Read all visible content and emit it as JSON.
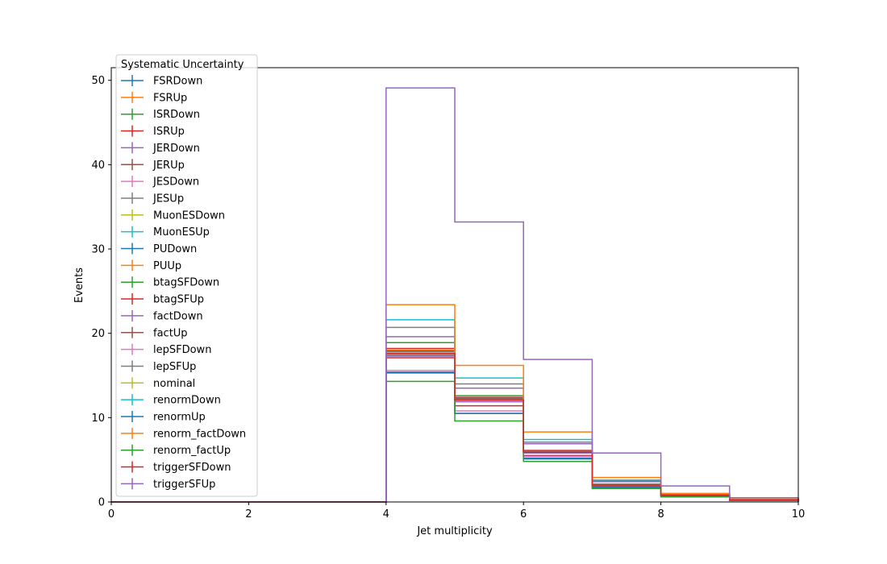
{
  "chart_data": {
    "type": "line",
    "style": "step-histogram",
    "xlabel": "Jet multiplicity",
    "ylabel": "Events",
    "xlim": [
      0,
      10
    ],
    "ylim": [
      0,
      51.5
    ],
    "xticks": [
      0,
      2,
      4,
      6,
      8,
      10
    ],
    "yticks": [
      0,
      10,
      20,
      30,
      40,
      50
    ],
    "bin_edges": [
      0,
      1,
      2,
      3,
      4,
      5,
      6,
      7,
      8,
      9,
      10
    ],
    "grid": false,
    "legend": {
      "title": "Systematic Uncertainty",
      "placement": "top-left"
    },
    "series": [
      {
        "name": "FSRDown",
        "color": "#1f77b4",
        "values": [
          0,
          0,
          0,
          0,
          15.4,
          10.5,
          5.1,
          1.7,
          0.7,
          0.2
        ]
      },
      {
        "name": "FSRUp",
        "color": "#ff7f0e",
        "values": [
          0,
          0,
          0,
          0,
          17.8,
          12.0,
          5.8,
          2.0,
          0.8,
          0.25
        ]
      },
      {
        "name": "ISRDown",
        "color": "#2ca02c",
        "values": [
          0,
          0,
          0,
          0,
          18.9,
          12.6,
          6.1,
          2.1,
          0.8,
          0.25
        ]
      },
      {
        "name": "ISRUp",
        "color": "#d62728",
        "values": [
          0,
          0,
          0,
          0,
          17.1,
          11.4,
          5.5,
          1.9,
          0.7,
          0.2
        ]
      },
      {
        "name": "JERDown",
        "color": "#9467bd",
        "values": [
          0,
          0,
          0,
          0,
          19.6,
          13.5,
          6.9,
          2.4,
          0.9,
          0.3
        ]
      },
      {
        "name": "JERUp",
        "color": "#8c564b",
        "values": [
          0,
          0,
          0,
          0,
          17.6,
          12.1,
          5.9,
          2.0,
          0.8,
          0.25
        ]
      },
      {
        "name": "JESDown",
        "color": "#e377c2",
        "values": [
          0,
          0,
          0,
          0,
          15.6,
          10.8,
          5.4,
          1.8,
          0.7,
          0.2
        ]
      },
      {
        "name": "JESUp",
        "color": "#7f7f7f",
        "values": [
          0,
          0,
          0,
          0,
          20.7,
          14.0,
          7.1,
          2.5,
          0.9,
          0.3
        ]
      },
      {
        "name": "MuonESDown",
        "color": "#bcbd22",
        "values": [
          0,
          0,
          0,
          0,
          17.9,
          12.2,
          6.0,
          2.0,
          0.8,
          0.25
        ]
      },
      {
        "name": "MuonESUp",
        "color": "#17becf",
        "values": [
          0,
          0,
          0,
          0,
          17.7,
          12.1,
          5.9,
          2.0,
          0.8,
          0.25
        ]
      },
      {
        "name": "PUDown",
        "color": "#1f77b4",
        "values": [
          0,
          0,
          0,
          0,
          17.5,
          11.9,
          5.8,
          2.0,
          0.8,
          0.25
        ]
      },
      {
        "name": "PUUp",
        "color": "#ff7f0e",
        "values": [
          0,
          0,
          0,
          0,
          18.0,
          12.3,
          6.0,
          2.1,
          0.8,
          0.25
        ]
      },
      {
        "name": "btagSFDown",
        "color": "#2ca02c",
        "values": [
          0,
          0,
          0,
          0,
          17.4,
          12.0,
          5.9,
          2.0,
          0.8,
          0.25
        ]
      },
      {
        "name": "btagSFUp",
        "color": "#d62728",
        "values": [
          0,
          0,
          0,
          0,
          18.2,
          12.4,
          6.1,
          2.1,
          0.8,
          0.25
        ]
      },
      {
        "name": "factDown",
        "color": "#9467bd",
        "values": [
          0,
          0,
          0,
          0,
          17.3,
          11.9,
          5.8,
          2.0,
          0.8,
          0.25
        ]
      },
      {
        "name": "factUp",
        "color": "#8c564b",
        "values": [
          0,
          0,
          0,
          0,
          17.9,
          12.3,
          6.0,
          2.1,
          0.8,
          0.25
        ]
      },
      {
        "name": "lepSFDown",
        "color": "#e377c2",
        "values": [
          0,
          0,
          0,
          0,
          17.5,
          12.0,
          5.9,
          2.0,
          0.8,
          0.25
        ]
      },
      {
        "name": "lepSFUp",
        "color": "#7f7f7f",
        "values": [
          0,
          0,
          0,
          0,
          17.8,
          12.2,
          6.0,
          2.1,
          0.8,
          0.25
        ]
      },
      {
        "name": "nominal",
        "color": "#bcbd22",
        "values": [
          0,
          0,
          0,
          0,
          17.7,
          12.1,
          5.9,
          2.0,
          0.8,
          0.25
        ]
      },
      {
        "name": "renormDown",
        "color": "#17becf",
        "values": [
          0,
          0,
          0,
          0,
          21.6,
          14.7,
          7.4,
          2.6,
          1.0,
          0.3
        ]
      },
      {
        "name": "renormUp",
        "color": "#1f77b4",
        "values": [
          0,
          0,
          0,
          0,
          15.3,
          10.5,
          5.2,
          1.8,
          0.7,
          0.2
        ]
      },
      {
        "name": "renorm_factDown",
        "color": "#ff7f0e",
        "values": [
          0,
          0,
          0,
          0,
          23.4,
          16.2,
          8.3,
          2.9,
          1.0,
          0.35
        ]
      },
      {
        "name": "renorm_factUp",
        "color": "#2ca02c",
        "values": [
          0,
          0,
          0,
          0,
          14.3,
          9.6,
          4.8,
          1.6,
          0.6,
          0.15
        ]
      },
      {
        "name": "triggerSFDown",
        "color": "#d62728",
        "values": [
          0,
          0,
          0,
          0,
          17.6,
          12.1,
          5.9,
          2.0,
          0.8,
          0.25
        ]
      },
      {
        "name": "triggerSFUp",
        "color": "#9467bd",
        "values": [
          0,
          0,
          0,
          0,
          49.1,
          33.2,
          16.9,
          5.8,
          1.9,
          0.5
        ]
      }
    ]
  }
}
